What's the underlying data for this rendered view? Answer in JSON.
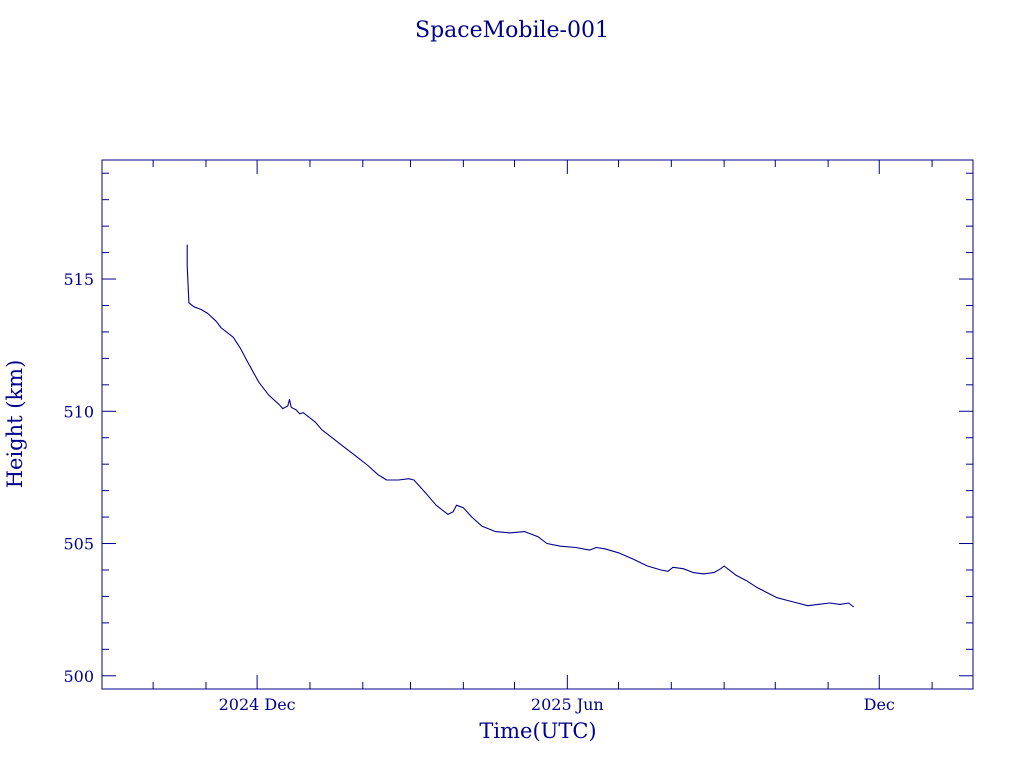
{
  "chart_data": {
    "type": "line",
    "title": "SpaceMobile-001",
    "xlabel": "Time(UTC)",
    "ylabel": "Height (km)",
    "color": "#00008b",
    "grid": false,
    "x_axis": {
      "range": [
        "2024-09-01",
        "2026-01-25"
      ],
      "major_ticks": [
        {
          "date": "2024-12-01",
          "label": "2024 Dec"
        },
        {
          "date": "2025-06-01",
          "label": "2025 Jun"
        },
        {
          "date": "2025-12-01",
          "label": "Dec"
        }
      ],
      "minor_ticks": [
        "2024-10-01",
        "2024-11-01",
        "2025-01-01",
        "2025-02-01",
        "2025-03-01",
        "2025-04-01",
        "2025-05-01",
        "2025-07-01",
        "2025-08-01",
        "2025-09-01",
        "2025-10-01",
        "2025-11-01",
        "2026-01-01"
      ]
    },
    "y_axis": {
      "range": [
        499.5,
        519.5
      ],
      "major_ticks": [
        500,
        505,
        510,
        515
      ],
      "minor_step": 1
    },
    "series": [
      {
        "points": [
          [
            "2024-10-21",
            516.3
          ],
          [
            "2024-10-21",
            515.5
          ],
          [
            "2024-10-22",
            514.1
          ],
          [
            "2024-10-25",
            513.95
          ],
          [
            "2024-10-29",
            513.85
          ],
          [
            "2024-11-02",
            513.7
          ],
          [
            "2024-11-07",
            513.4
          ],
          [
            "2024-11-10",
            513.15
          ],
          [
            "2024-11-13",
            513.0
          ],
          [
            "2024-11-17",
            512.8
          ],
          [
            "2024-11-21",
            512.4
          ],
          [
            "2024-11-26",
            511.8
          ],
          [
            "2024-12-02",
            511.1
          ],
          [
            "2024-12-08",
            510.6
          ],
          [
            "2024-12-14",
            510.25
          ],
          [
            "2024-12-16",
            510.1
          ],
          [
            "2024-12-19",
            510.2
          ],
          [
            "2024-12-20",
            510.45
          ],
          [
            "2024-12-21",
            510.15
          ],
          [
            "2024-12-24",
            510.05
          ],
          [
            "2024-12-26",
            509.9
          ],
          [
            "2024-12-28",
            509.95
          ],
          [
            "2024-12-31",
            509.8
          ],
          [
            "2025-01-04",
            509.6
          ],
          [
            "2025-01-08",
            509.3
          ],
          [
            "2025-01-14",
            509.0
          ],
          [
            "2025-01-20",
            508.7
          ],
          [
            "2025-01-23",
            508.55
          ],
          [
            "2025-01-28",
            508.3
          ],
          [
            "2025-02-04",
            507.95
          ],
          [
            "2025-02-10",
            507.6
          ],
          [
            "2025-02-15",
            507.4
          ],
          [
            "2025-02-22",
            507.4
          ],
          [
            "2025-02-28",
            507.45
          ],
          [
            "2025-03-03",
            507.4
          ],
          [
            "2025-03-10",
            506.9
          ],
          [
            "2025-03-16",
            506.45
          ],
          [
            "2025-03-23",
            506.1
          ],
          [
            "2025-03-26",
            506.2
          ],
          [
            "2025-03-28",
            506.45
          ],
          [
            "2025-04-01",
            506.35
          ],
          [
            "2025-04-06",
            506.0
          ],
          [
            "2025-04-12",
            505.65
          ],
          [
            "2025-04-20",
            505.45
          ],
          [
            "2025-04-28",
            505.4
          ],
          [
            "2025-05-07",
            505.45
          ],
          [
            "2025-05-15",
            505.25
          ],
          [
            "2025-05-20",
            505.0
          ],
          [
            "2025-05-28",
            504.9
          ],
          [
            "2025-06-06",
            504.85
          ],
          [
            "2025-06-14",
            504.75
          ],
          [
            "2025-06-18",
            504.85
          ],
          [
            "2025-06-23",
            504.8
          ],
          [
            "2025-07-01",
            504.65
          ],
          [
            "2025-07-10",
            504.4
          ],
          [
            "2025-07-18",
            504.15
          ],
          [
            "2025-07-26",
            504.0
          ],
          [
            "2025-07-30",
            503.95
          ],
          [
            "2025-08-02",
            504.1
          ],
          [
            "2025-08-08",
            504.05
          ],
          [
            "2025-08-14",
            503.9
          ],
          [
            "2025-08-20",
            503.85
          ],
          [
            "2025-08-26",
            503.9
          ],
          [
            "2025-08-30",
            504.05
          ],
          [
            "2025-09-01",
            504.15
          ],
          [
            "2025-09-05",
            503.95
          ],
          [
            "2025-09-08",
            503.8
          ],
          [
            "2025-09-14",
            503.6
          ],
          [
            "2025-09-20",
            503.35
          ],
          [
            "2025-09-26",
            503.15
          ],
          [
            "2025-10-02",
            502.95
          ],
          [
            "2025-10-08",
            502.85
          ],
          [
            "2025-10-14",
            502.75
          ],
          [
            "2025-10-20",
            502.65
          ],
          [
            "2025-10-26",
            502.7
          ],
          [
            "2025-11-02",
            502.75
          ],
          [
            "2025-11-08",
            502.7
          ],
          [
            "2025-11-13",
            502.75
          ],
          [
            "2025-11-16",
            502.6
          ]
        ]
      }
    ]
  }
}
